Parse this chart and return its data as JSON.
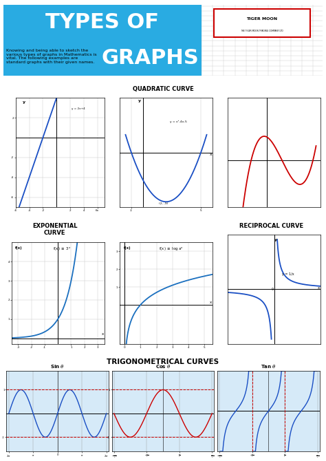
{
  "title_line1": "TYPES OF",
  "title_line2": "GRAPHS",
  "title_bg": "#29ABE2",
  "subtitle_text": "Knowing and being able to sketch the\nvarious types of graphs in Mathematics is\nvital. The following examples are\nstandard graphs with their given names.",
  "bg_color": "#FFFFFF",
  "border_color": "#333333",
  "section_colors": {
    "linear": "#F06E7E",
    "quadratic": "#FFFFFF",
    "cubic": "#C3A6D8",
    "exponential": "#FFFFFF",
    "logarithmic": "#F5924A",
    "reciprocal": "#FFFFFF",
    "trig": "#D6EAF8"
  },
  "grid_color": "#CCCCCC",
  "axis_color": "#333333",
  "curve_colors": {
    "linear": "#1A4FC4",
    "quadratic": "#1A4FC4",
    "cubic": "#CC0000",
    "exponential": "#1A6FBF",
    "logarithmic": "#1A6FBF",
    "reciprocal": "#1A4FC4",
    "sin": "#1A4FC4",
    "cos": "#CC0000",
    "tan": "#1A4FC4"
  },
  "trig_bg": "#D6EAF8"
}
